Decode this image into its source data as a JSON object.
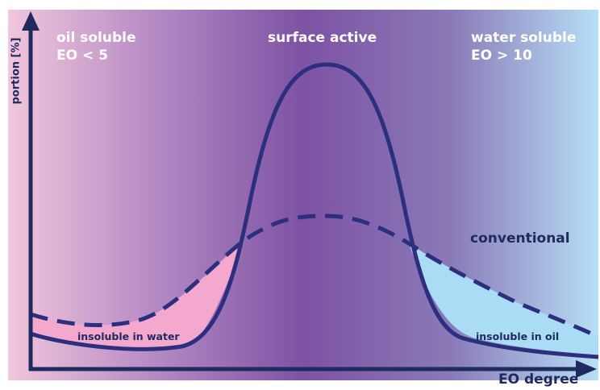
{
  "regions": {
    "left": {
      "line1": "oil soluble",
      "line2": "EO < 5"
    },
    "center": {
      "line1": "surface active"
    },
    "right": {
      "line1": "water soluble",
      "line2": "EO > 10"
    }
  },
  "curves": {
    "dashed_label": "conventional"
  },
  "areas": {
    "left_label": "insoluble in water",
    "right_label": "insoluble in oil"
  },
  "axes": {
    "y_label": "portion [%]",
    "x_label": "EO degree"
  },
  "colors": {
    "axis": "#1f2a5e",
    "curve": "#2b2f7e",
    "bg_left": "#f2c6dc",
    "bg_center": "#7d52a3",
    "bg_right": "#b6e0f6",
    "fill_left": "#f4a8cd",
    "fill_right": "#abdcf5"
  }
}
